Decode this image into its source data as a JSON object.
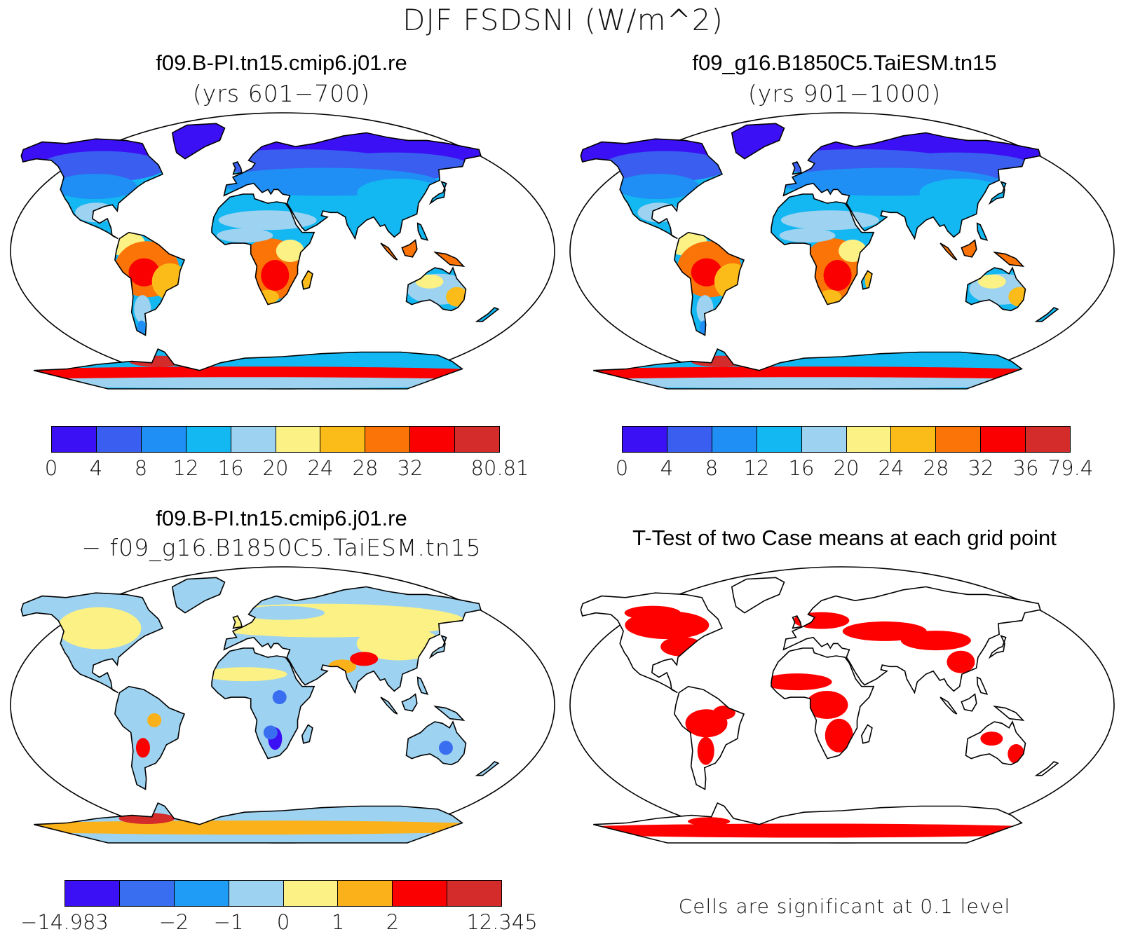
{
  "figure": {
    "title": "DJF FSDSNI (W/m^2)"
  },
  "panels": {
    "case1": {
      "title": "f09.B-PI.tn15.cmip6.j01.re",
      "subtitle": "(yrs 601−700)",
      "colorbar": {
        "colors": [
          "#3b10f4",
          "#3a5ef0",
          "#1f8ef5",
          "#13b8f2",
          "#9dd2f0",
          "#fbf185",
          "#fbbc19",
          "#fb7407",
          "#fb0000",
          "#d42b2b"
        ],
        "labels": [
          "0",
          "4",
          "8",
          "12",
          "16",
          "20",
          "24",
          "28",
          "32",
          "80.81"
        ]
      }
    },
    "case2": {
      "title": "f09_g16.B1850C5.TaiESM.tn15",
      "subtitle": "(yrs 901−1000)",
      "colorbar": {
        "colors": [
          "#3b10f4",
          "#3a5ef0",
          "#1f8ef5",
          "#13b8f2",
          "#9dd2f0",
          "#fbf185",
          "#fbbc19",
          "#fb7407",
          "#fb0000",
          "#d42b2b"
        ],
        "labels": [
          "0",
          "4",
          "8",
          "12",
          "16",
          "20",
          "24",
          "28",
          "32",
          "36",
          "79.4"
        ]
      }
    },
    "difference": {
      "title": "f09.B-PI.tn15.cmip6.j01.re",
      "subtitle": "− f09_g16.B1850C5.TaiESM.tn15",
      "colorbar": {
        "colors": [
          "#3b10f4",
          "#3a6ef0",
          "#1f9cf5",
          "#9dd2f0",
          "#fbf185",
          "#fbb119",
          "#fb0000",
          "#d42b2b"
        ],
        "labels": [
          "−14.983",
          "−2",
          "−1",
          "0",
          "1",
          "2",
          "12.345"
        ]
      }
    },
    "ttest": {
      "title": "T-Test of two Case means at each grid point",
      "note": "Cells are significant at 0.1 level",
      "fill_color": "#ff0000"
    }
  }
}
